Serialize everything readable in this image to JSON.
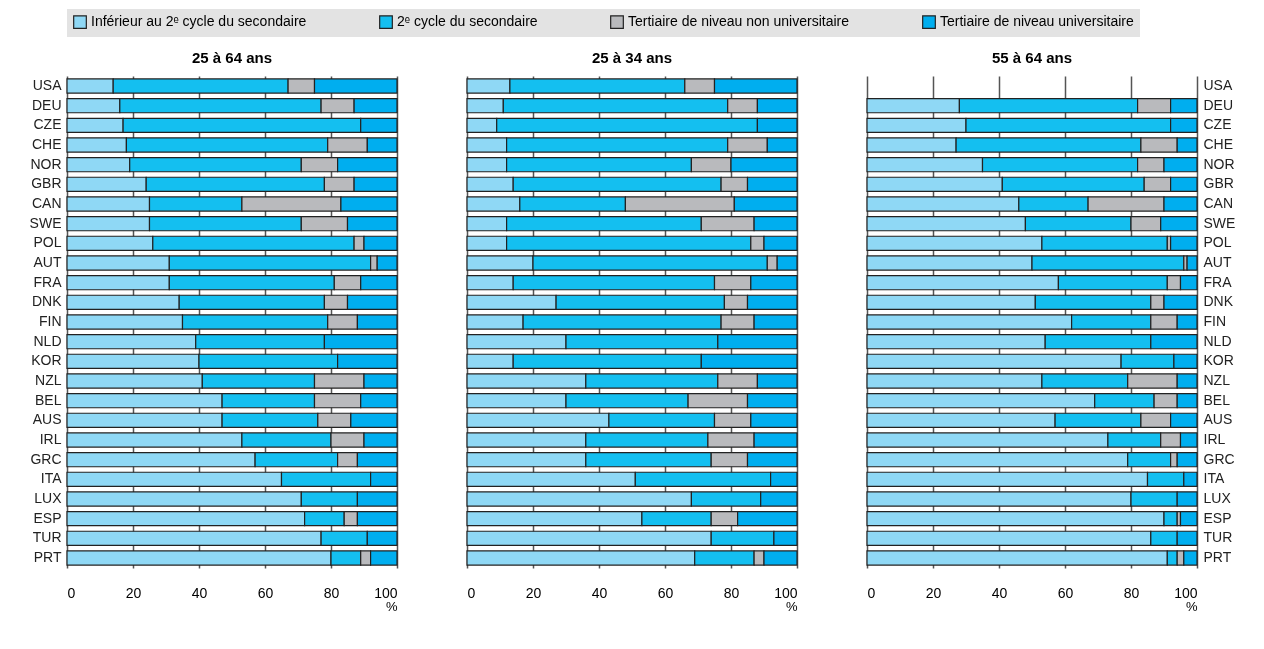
{
  "chart_data": [
    {
      "type": "bar",
      "orientation": "horizontal",
      "stacked": true,
      "title": "25 à 64 ans",
      "xlabel": "%",
      "xlim": [
        0,
        100
      ],
      "xticks": [
        0,
        20,
        40,
        60,
        80,
        100
      ],
      "grid": "x",
      "legend": "top",
      "categories": [
        "USA",
        "DEU",
        "CZE",
        "CHE",
        "NOR",
        "GBR",
        "CAN",
        "SWE",
        "POL",
        "AUT",
        "FRA",
        "DNK",
        "FIN",
        "NLD",
        "KOR",
        "NZL",
        "BEL",
        "AUS",
        "IRL",
        "GRC",
        "ITA",
        "LUX",
        "ESP",
        "TUR",
        "PRT"
      ],
      "series": [
        {
          "name": "Inférieur au 2ᵉ cycle du secondaire",
          "color": "#8fd8f5",
          "values": [
            14,
            16,
            17,
            18,
            19,
            24,
            25,
            25,
            26,
            31,
            31,
            34,
            35,
            39,
            40,
            41,
            47,
            47,
            53,
            57,
            65,
            71,
            72,
            77,
            80
          ]
        },
        {
          "name": "2ᵉ cycle du secondaire",
          "color": "#14bff0",
          "values": [
            53,
            61,
            72,
            61,
            52,
            54,
            28,
            46,
            61,
            61,
            50,
            44,
            44,
            39,
            42,
            34,
            28,
            29,
            27,
            25,
            27,
            17,
            12,
            14,
            9
          ]
        },
        {
          "name": "Tertiaire de niveau non universitaire",
          "color": "#b9babd",
          "values": [
            8,
            10,
            null,
            12,
            11,
            9,
            30,
            14,
            3,
            2,
            8,
            7,
            9,
            null,
            null,
            15,
            14,
            10,
            10,
            6,
            null,
            null,
            4,
            null,
            3
          ]
        },
        {
          "name": "Tertiaire de niveau universitaire",
          "color": "#00aeef",
          "values": [
            25,
            13,
            11,
            9,
            18,
            13,
            17,
            15,
            10,
            6,
            11,
            15,
            12,
            22,
            18,
            10,
            11,
            14,
            10,
            12,
            8,
            12,
            12,
            9,
            8
          ]
        }
      ]
    },
    {
      "type": "bar",
      "orientation": "horizontal",
      "stacked": true,
      "title": "25 à 34 ans",
      "xlabel": "%",
      "xlim": [
        0,
        100
      ],
      "xticks": [
        0,
        20,
        40,
        60,
        80,
        100
      ],
      "grid": "x",
      "legend": "top",
      "tick_labels": "x",
      "categories": [
        "USA",
        "DEU",
        "CZE",
        "CHE",
        "NOR",
        "GBR",
        "CAN",
        "SWE",
        "POL",
        "AUT",
        "FRA",
        "DNK",
        "FIN",
        "NLD",
        "KOR",
        "NZL",
        "BEL",
        "AUS",
        "IRL",
        "GRC",
        "ITA",
        "LUX",
        "ESP",
        "TUR",
        "PRT"
      ],
      "series": [
        {
          "name": "Inférieur au 2ᵉ cycle du secondaire",
          "color": "#8fd8f5",
          "values": [
            13,
            11,
            9,
            12,
            12,
            14,
            16,
            12,
            12,
            20,
            14,
            27,
            17,
            30,
            14,
            36,
            30,
            43,
            36,
            36,
            51,
            68,
            53,
            74,
            69
          ]
        },
        {
          "name": "2ᵉ cycle du secondaire",
          "color": "#14bff0",
          "values": [
            53,
            68,
            79,
            67,
            56,
            63,
            32,
            59,
            74,
            71,
            61,
            51,
            60,
            46,
            57,
            40,
            37,
            32,
            37,
            38,
            41,
            21,
            21,
            19,
            18
          ]
        },
        {
          "name": "Tertiaire de niveau non universitaire",
          "color": "#b9babd",
          "values": [
            9,
            9,
            null,
            12,
            12,
            8,
            33,
            16,
            4,
            3,
            11,
            7,
            10,
            null,
            null,
            12,
            18,
            11,
            14,
            11,
            null,
            null,
            8,
            null,
            3
          ]
        },
        {
          "name": "Tertiaire de niveau universitaire",
          "color": "#00aeef",
          "values": [
            25,
            12,
            12,
            9,
            20,
            15,
            19,
            13,
            10,
            6,
            14,
            15,
            13,
            24,
            29,
            12,
            15,
            14,
            13,
            15,
            8,
            11,
            18,
            7,
            10
          ]
        }
      ]
    },
    {
      "type": "bar",
      "orientation": "horizontal",
      "stacked": true,
      "title": "55 à 64 ans",
      "xlabel": "%",
      "xlim": [
        0,
        100
      ],
      "xticks": [
        0,
        20,
        40,
        60,
        80,
        100
      ],
      "grid": "x",
      "legend": "top",
      "categories": [
        "USA",
        "DEU",
        "CZE",
        "CHE",
        "NOR",
        "GBR",
        "CAN",
        "SWE",
        "POL",
        "AUT",
        "FRA",
        "DNK",
        "FIN",
        "NLD",
        "KOR",
        "NZL",
        "BEL",
        "AUS",
        "IRL",
        "GRC",
        "ITA",
        "LUX",
        "ESP",
        "TUR",
        "PRT"
      ],
      "series": [
        {
          "name": "Inférieur au 2ᵉ cycle du secondaire",
          "color": "#8fd8f5",
          "values": [
            null,
            28,
            30,
            27,
            35,
            41,
            46,
            48,
            53,
            50,
            58,
            51,
            62,
            54,
            77,
            53,
            69,
            57,
            73,
            79,
            85,
            80,
            90,
            86,
            91
          ]
        },
        {
          "name": "2ᵉ cycle du secondaire",
          "color": "#14bff0",
          "values": [
            null,
            54,
            62,
            56,
            47,
            43,
            21,
            32,
            38,
            46,
            33,
            35,
            24,
            32,
            16,
            26,
            18,
            26,
            16,
            13,
            11,
            14,
            4,
            8,
            3
          ]
        },
        {
          "name": "Tertiaire de niveau non universitaire",
          "color": "#b9babd",
          "values": [
            null,
            10,
            null,
            11,
            8,
            8,
            23,
            9,
            1,
            1,
            4,
            4,
            8,
            null,
            null,
            15,
            7,
            9,
            6,
            2,
            null,
            null,
            1,
            null,
            2
          ]
        },
        {
          "name": "Tertiaire de niveau universitaire",
          "color": "#00aeef",
          "values": [
            null,
            8,
            8,
            6,
            10,
            8,
            10,
            11,
            8,
            3,
            5,
            10,
            6,
            14,
            7,
            6,
            6,
            8,
            5,
            6,
            4,
            6,
            5,
            6,
            4
          ]
        }
      ]
    }
  ]
}
